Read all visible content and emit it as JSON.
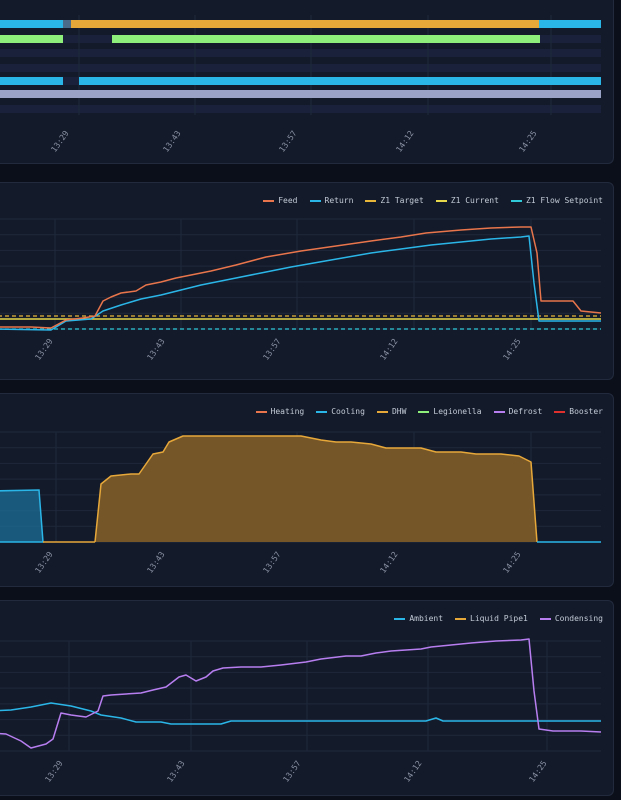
{
  "colors": {
    "grid": "#1f293b",
    "orange": "#e8754b",
    "blue": "#2bb6e8",
    "yellow": "#e6d84a",
    "yellow_dash": "#e8b73a",
    "cyan": "#2fc9d9",
    "dhw": "#e7a83a",
    "green": "#8ef07a",
    "purple": "#b77ef0",
    "red": "#e0302e",
    "lavender": "#9aa3c6"
  },
  "x_ticks": [
    "13:29",
    "13:43",
    "13:57",
    "14:12",
    "14:25"
  ],
  "panels": [
    {
      "id": "status-timeline",
      "legend": []
    },
    {
      "id": "temperatures",
      "legend": [
        {
          "label": "Feed",
          "color": "#e8754b",
          "dashed": false
        },
        {
          "label": "Return",
          "color": "#2bb6e8",
          "dashed": false
        },
        {
          "label": "Z1 Target",
          "color": "#e8b73a",
          "dashed": true
        },
        {
          "label": "Z1 Current",
          "color": "#e6d84a",
          "dashed": false
        },
        {
          "label": "Z1 Flow Setpoint",
          "color": "#2fc9d9",
          "dashed": true
        }
      ]
    },
    {
      "id": "operation-modes",
      "legend": [
        {
          "label": "Heating",
          "color": "#e8754b",
          "dashed": false
        },
        {
          "label": "Cooling",
          "color": "#2bb6e8",
          "dashed": false
        },
        {
          "label": "DHW",
          "color": "#e7a83a",
          "dashed": false
        },
        {
          "label": "Legionella",
          "color": "#8ef07a",
          "dashed": false
        },
        {
          "label": "Defrost",
          "color": "#b77ef0",
          "dashed": false
        },
        {
          "label": "Booster",
          "color": "#e0302e",
          "dashed": false
        }
      ]
    },
    {
      "id": "refrigerant-temps",
      "legend": [
        {
          "label": "Ambient",
          "color": "#2bb6e8",
          "dashed": false
        },
        {
          "label": "Liquid Pipe1",
          "color": "#e7a83a",
          "dashed": false
        },
        {
          "label": "Condensing",
          "color": "#b77ef0",
          "dashed": false
        }
      ]
    }
  ]
}
